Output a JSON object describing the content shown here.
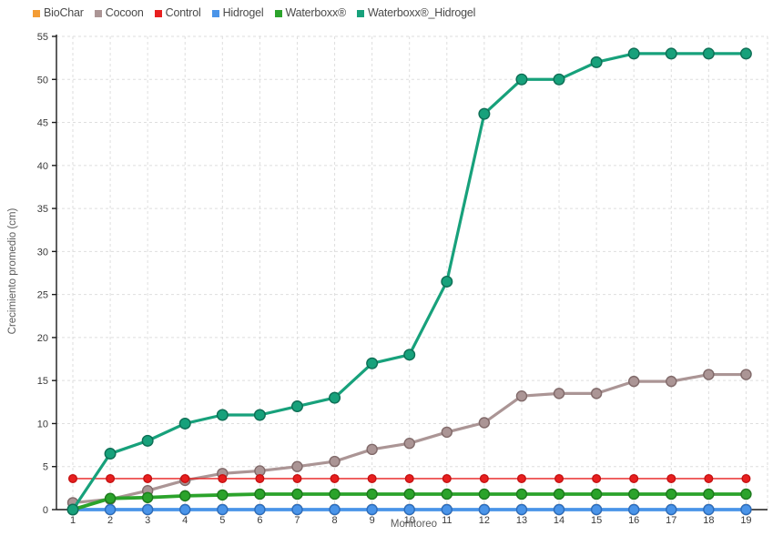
{
  "chart_data": {
    "type": "line",
    "title": "",
    "xlabel": "Monitoreo",
    "ylabel": "Crecimiento promedio (cm)",
    "x": [
      1,
      2,
      3,
      4,
      5,
      6,
      7,
      8,
      9,
      10,
      11,
      12,
      13,
      14,
      15,
      16,
      17,
      18,
      19
    ],
    "ylim": [
      0,
      55
    ],
    "yticks": [
      0,
      5,
      10,
      15,
      20,
      25,
      30,
      35,
      40,
      45,
      50,
      55
    ],
    "grid": true,
    "legend_position": "top-left",
    "series": [
      {
        "name": "BioChar",
        "color": "#f39c35",
        "marker_stroke": "#c77a1d",
        "line_width": 3,
        "marker_r": 5.5,
        "values": [
          0,
          0,
          0,
          0,
          0,
          0,
          0,
          0,
          0,
          0,
          0,
          0,
          0,
          0,
          0,
          0,
          0,
          0,
          0
        ],
        "note": "not visible in plot; coincides with Hidrogel at 0 and is drawn underneath"
      },
      {
        "name": "Cocoon",
        "color": "#ab9595",
        "marker_stroke": "#816a6a",
        "line_width": 3.2,
        "marker_r": 5.5,
        "values": [
          0.8,
          1.2,
          2.2,
          3.4,
          4.2,
          4.5,
          5.0,
          5.6,
          7.0,
          7.7,
          9.0,
          10.1,
          13.2,
          13.5,
          13.5,
          14.9,
          14.9,
          15.7,
          15.7
        ]
      },
      {
        "name": "Control",
        "color": "#e81f1f",
        "marker_stroke": "#c51212",
        "line_width": 1.4,
        "marker_r": 4.3,
        "values": [
          3.6,
          3.6,
          3.6,
          3.6,
          3.6,
          3.6,
          3.6,
          3.6,
          3.6,
          3.6,
          3.6,
          3.6,
          3.6,
          3.6,
          3.6,
          3.6,
          3.6,
          3.6,
          3.6
        ]
      },
      {
        "name": "Hidrogel",
        "color": "#4a94e8",
        "marker_stroke": "#2c6dbd",
        "line_width": 3.8,
        "marker_r": 5.5,
        "values": [
          0,
          0,
          0,
          0,
          0,
          0,
          0,
          0,
          0,
          0,
          0,
          0,
          0,
          0,
          0,
          0,
          0,
          0,
          0
        ]
      },
      {
        "name": "Waterboxx®",
        "color": "#2ba32b",
        "marker_stroke": "#1d7a1d",
        "line_width": 3.8,
        "marker_r": 5.5,
        "values": [
          0,
          1.3,
          1.4,
          1.6,
          1.7,
          1.8,
          1.8,
          1.8,
          1.8,
          1.8,
          1.8,
          1.8,
          1.8,
          1.8,
          1.8,
          1.8,
          1.8,
          1.8,
          1.8
        ]
      },
      {
        "name": "Waterboxx®_Hidrogel",
        "color": "#17a17b",
        "marker_stroke": "#0e6e55",
        "line_width": 3.2,
        "marker_r": 5.8,
        "values": [
          0,
          6.5,
          8,
          10,
          11,
          11,
          12,
          13,
          17,
          18,
          26.5,
          46,
          50,
          50,
          52,
          53,
          53,
          53,
          53
        ]
      }
    ],
    "style": {
      "grid_color": "#dedede",
      "spine_color": "#1a1a1a",
      "tick_label_color": "#3a3a3a",
      "axis_title_color": "#5a5a5a",
      "background": "#ffffff"
    }
  }
}
